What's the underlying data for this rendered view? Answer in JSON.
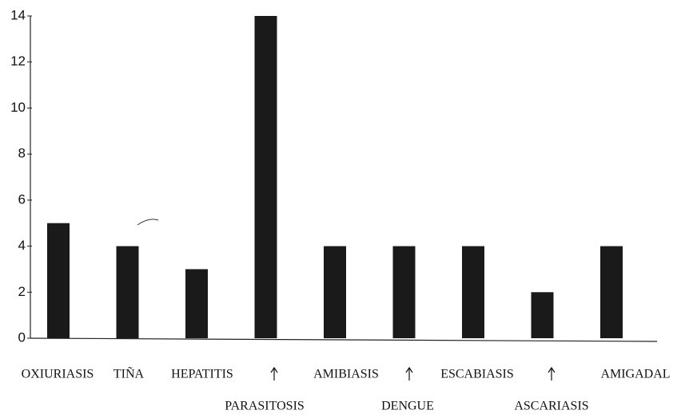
{
  "chart_data": {
    "type": "bar",
    "categories": [
      "OXIURIASIS",
      "TIÑA",
      "HEPATITIS",
      "PARASITOSIS",
      "AMIBIASIS",
      "DENGUE",
      "ESCABIASIS",
      "ASCARIASIS",
      "AMIGADAL"
    ],
    "values": [
      5,
      4,
      3,
      14,
      4,
      4,
      4,
      2,
      4
    ],
    "color": "#1a1a1a",
    "ylim": [
      0,
      14
    ],
    "yticks": [
      0,
      2,
      4,
      6,
      8,
      10,
      12,
      14
    ],
    "grid": false
  }
}
